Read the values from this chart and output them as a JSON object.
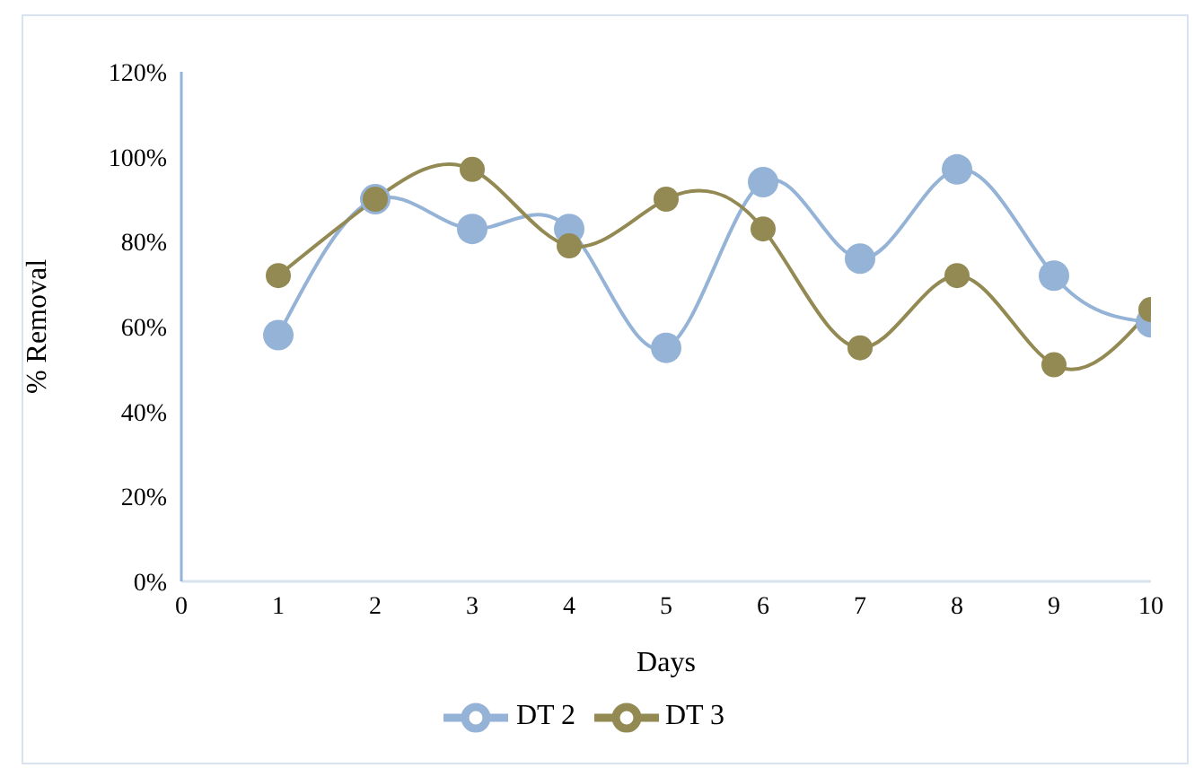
{
  "chart_data": {
    "type": "line",
    "xlabel": "Days",
    "ylabel": "% Removal",
    "x": [
      1,
      2,
      3,
      4,
      5,
      6,
      7,
      8,
      9,
      10
    ],
    "xlim": [
      0,
      10
    ],
    "xticks": [
      0,
      1,
      2,
      3,
      4,
      5,
      6,
      7,
      8,
      9,
      10
    ],
    "ylim": [
      0,
      120
    ],
    "yticks": [
      {
        "value": 0,
        "label": "0%"
      },
      {
        "value": 20,
        "label": "20%"
      },
      {
        "value": 40,
        "label": "40%"
      },
      {
        "value": 60,
        "label": "60%"
      },
      {
        "value": 80,
        "label": "80%"
      },
      {
        "value": 100,
        "label": "100%"
      },
      {
        "value": 120,
        "label": "120%"
      }
    ],
    "series": [
      {
        "name": "DT 2",
        "color": "#95b3d7",
        "values": [
          58,
          90,
          83,
          83,
          55,
          94,
          76,
          97,
          72,
          61
        ]
      },
      {
        "name": "DT 3",
        "color": "#938953",
        "values": [
          72,
          90,
          97,
          79,
          90,
          83,
          55,
          72,
          51,
          64
        ]
      }
    ],
    "marker": "circle",
    "legend": "bottom"
  }
}
